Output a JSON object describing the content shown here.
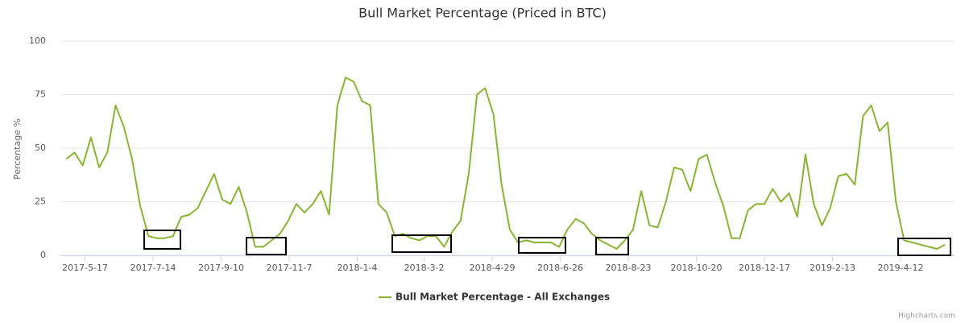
{
  "chart_data": {
    "type": "line",
    "title": "Bull Market Percentage (Priced in BTC)",
    "y_label": "Percentage %",
    "credit": "Highcharts.com",
    "legend": "bottom",
    "grid": true,
    "x": [
      "2017-5-1",
      "2017-5-8",
      "2017-5-15",
      "2017-5-22",
      "2017-5-29",
      "2017-6-5",
      "2017-6-12",
      "2017-6-19",
      "2017-6-26",
      "2017-7-3",
      "2017-7-10",
      "2017-7-17",
      "2017-7-24",
      "2017-7-31",
      "2017-8-7",
      "2017-8-14",
      "2017-8-21",
      "2017-8-28",
      "2017-9-4",
      "2017-9-11",
      "2017-9-18",
      "2017-9-25",
      "2017-10-2",
      "2017-10-9",
      "2017-10-16",
      "2017-10-23",
      "2017-10-30",
      "2017-11-6",
      "2017-11-13",
      "2017-11-20",
      "2017-11-27",
      "2017-12-4",
      "2017-12-11",
      "2017-12-18",
      "2017-12-25",
      "2018-1-1",
      "2018-1-8",
      "2018-1-15",
      "2018-1-22",
      "2018-1-29",
      "2018-2-5",
      "2018-2-12",
      "2018-2-19",
      "2018-2-26",
      "2018-3-5",
      "2018-3-12",
      "2018-3-19",
      "2018-3-26",
      "2018-4-2",
      "2018-4-9",
      "2018-4-16",
      "2018-4-23",
      "2018-4-30",
      "2018-5-7",
      "2018-5-14",
      "2018-5-21",
      "2018-5-28",
      "2018-6-4",
      "2018-6-11",
      "2018-6-18",
      "2018-6-25",
      "2018-7-2",
      "2018-7-9",
      "2018-7-16",
      "2018-7-23",
      "2018-7-30",
      "2018-8-6",
      "2018-8-13",
      "2018-8-20",
      "2018-8-27",
      "2018-9-3",
      "2018-9-10",
      "2018-9-17",
      "2018-9-24",
      "2018-10-1",
      "2018-10-8",
      "2018-10-15",
      "2018-10-22",
      "2018-10-29",
      "2018-11-5",
      "2018-11-12",
      "2018-11-19",
      "2018-11-26",
      "2018-12-3",
      "2018-12-10",
      "2018-12-17",
      "2018-12-24",
      "2018-12-31",
      "2019-1-7",
      "2019-1-14",
      "2019-1-21",
      "2019-1-28",
      "2019-2-4",
      "2019-2-11",
      "2019-2-18",
      "2019-2-25",
      "2019-3-4",
      "2019-3-11",
      "2019-3-18",
      "2019-3-25",
      "2019-4-1",
      "2019-4-8",
      "2019-4-15",
      "2019-4-22",
      "2019-4-29",
      "2019-5-6",
      "2019-5-13",
      "2019-5-20"
    ],
    "series": [
      {
        "name": "Bull Market Percentage - All Exchanges",
        "color": "#88b52f",
        "values": [
          45,
          48,
          42,
          55,
          41,
          48,
          70,
          60,
          45,
          23,
          9,
          8,
          8,
          9,
          18,
          19,
          22,
          30,
          38,
          26,
          24,
          32,
          20,
          4,
          4,
          7,
          10,
          16,
          24,
          20,
          24,
          30,
          19,
          70,
          83,
          81,
          72,
          70,
          24,
          20,
          9,
          10,
          8,
          7,
          9,
          9,
          4,
          11,
          16,
          38,
          75,
          78,
          66,
          33,
          12,
          6,
          7,
          6,
          6,
          6,
          4,
          12,
          17,
          15,
          10,
          7,
          5,
          3,
          7,
          12,
          30,
          14,
          13,
          25,
          41,
          40,
          30,
          45,
          47,
          34,
          23,
          8,
          8,
          21,
          24,
          24,
          31,
          25,
          29,
          18,
          47,
          24,
          14,
          22,
          37,
          38,
          33,
          65,
          70,
          58,
          62,
          25,
          7,
          6,
          5,
          4,
          3,
          5
        ]
      }
    ],
    "xlim": [
      "2017-4-26",
      "2019-5-28"
    ],
    "xticks": [
      "2017-5-17",
      "2017-7-14",
      "2017-9-10",
      "2017-11-7",
      "2018-1-4",
      "2018-3-2",
      "2018-4-29",
      "2018-6-26",
      "2018-8-23",
      "2018-10-20",
      "2018-12-17",
      "2019-2-13",
      "2019-4-12"
    ],
    "ylim": [
      0,
      100
    ],
    "yticks": [
      0,
      25,
      50,
      75,
      100
    ]
  }
}
